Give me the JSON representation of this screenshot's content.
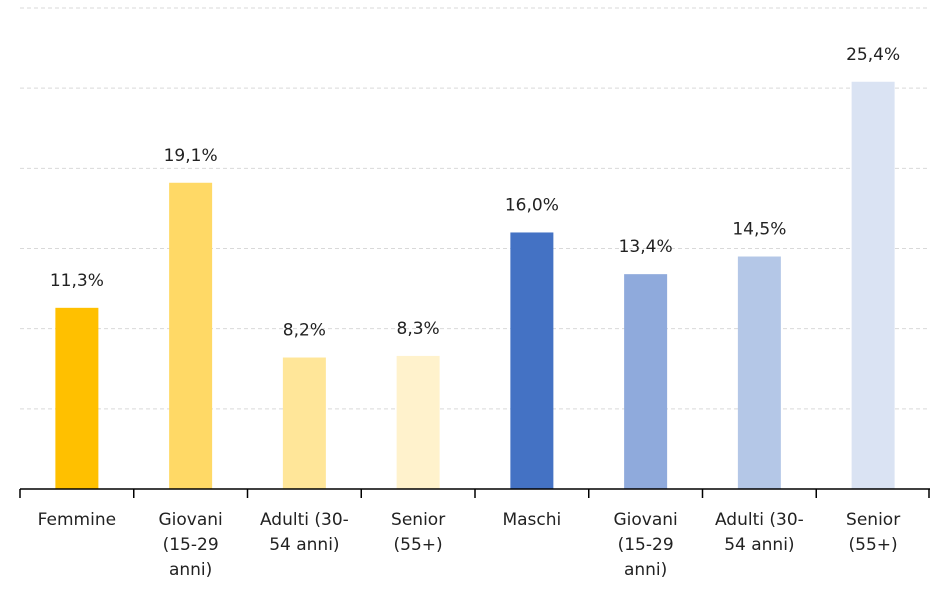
{
  "chart_data": {
    "type": "bar",
    "categories": [
      "Femmine",
      "Giovani (15-29 anni)",
      "Adulti (30-54 anni)",
      "Senior (55+)",
      "Maschi",
      "Giovani (15-29 anni)",
      "Adulti (30-54 anni)",
      "Senior (55+)"
    ],
    "values": [
      11.3,
      19.1,
      8.2,
      8.3,
      16.0,
      13.4,
      14.5,
      25.4
    ],
    "value_labels": [
      "11,3%",
      "19,1%",
      "8,2%",
      "8,3%",
      "16,0%",
      "13,4%",
      "14,5%",
      "25,4%"
    ],
    "colors": [
      "#ffc000",
      "#ffd966",
      "#ffe699",
      "#fff2cc",
      "#4472c4",
      "#8faadc",
      "#b4c7e7",
      "#dae3f3"
    ],
    "ylim": [
      0,
      30
    ],
    "yticks": [
      0,
      5,
      10,
      15,
      20,
      25,
      30
    ],
    "grid": true
  }
}
